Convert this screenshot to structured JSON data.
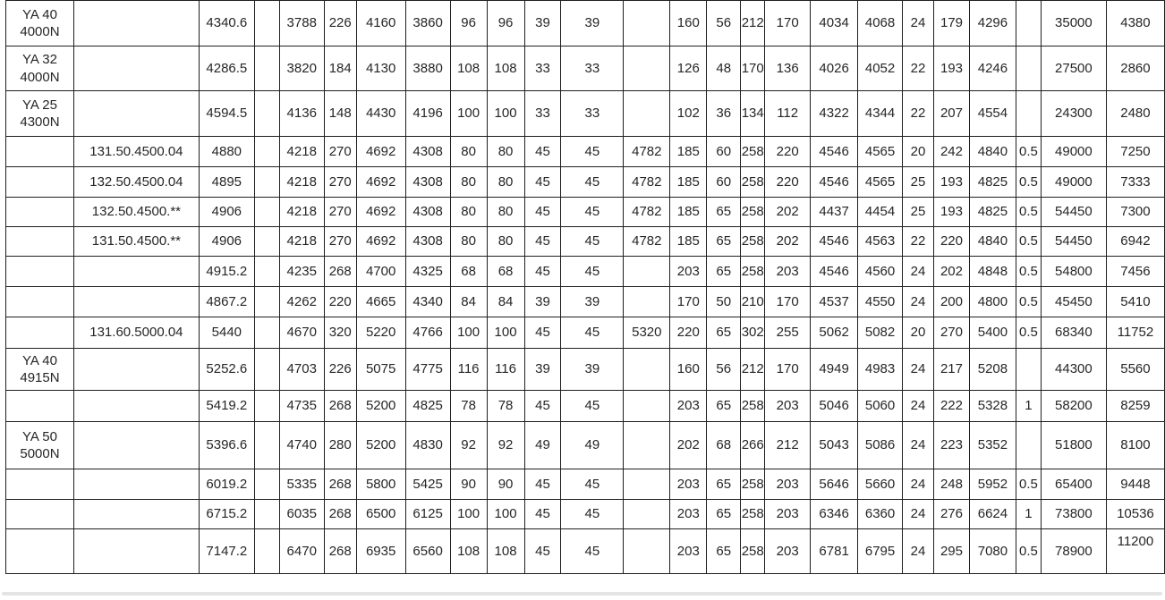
{
  "table": {
    "rows": [
      [
        "YA 40\n4000N",
        "",
        "4340.6",
        "",
        "3788",
        "226",
        "4160",
        "3860",
        "96",
        "96",
        "39",
        "39",
        "",
        "160",
        "56",
        "212",
        "170",
        "4034",
        "4068",
        "24",
        "179",
        "4296",
        "",
        "35000",
        "4380"
      ],
      [
        "YA 32\n4000N",
        "",
        "4286.5",
        "",
        "3820",
        "184",
        "4130",
        "3880",
        "108",
        "108",
        "33",
        "33",
        "",
        "126",
        "48",
        "170",
        "136",
        "4026",
        "4052",
        "22",
        "193",
        "4246",
        "",
        "27500",
        "2860"
      ],
      [
        "YA 25\n4300N",
        "",
        "4594.5",
        "",
        "4136",
        "148",
        "4430",
        "4196",
        "100",
        "100",
        "33",
        "33",
        "",
        "102",
        "36",
        "134",
        "112",
        "4322",
        "4344",
        "22",
        "207",
        "4554",
        "",
        "24300",
        "2480"
      ],
      [
        "",
        "131.50.4500.04",
        "4880",
        "",
        "4218",
        "270",
        "4692",
        "4308",
        "80",
        "80",
        "45",
        "45",
        "4782",
        "185",
        "60",
        "258",
        "220",
        "4546",
        "4565",
        "20",
        "242",
        "4840",
        "0.5",
        "49000",
        "7250"
      ],
      [
        "",
        "132.50.4500.04",
        "4895",
        "",
        "4218",
        "270",
        "4692",
        "4308",
        "80",
        "80",
        "45",
        "45",
        "4782",
        "185",
        "60",
        "258",
        "220",
        "4546",
        "4565",
        "25",
        "193",
        "4825",
        "0.5",
        "49000",
        "7333"
      ],
      [
        "",
        "132.50.4500.**",
        "4906",
        "",
        "4218",
        "270",
        "4692",
        "4308",
        "80",
        "80",
        "45",
        "45",
        "4782",
        "185",
        "65",
        "258",
        "202",
        "4437",
        "4454",
        "25",
        "193",
        "4825",
        "0.5",
        "54450",
        "7300"
      ],
      [
        "",
        "131.50.4500.**",
        "4906",
        "",
        "4218",
        "270",
        "4692",
        "4308",
        "80",
        "80",
        "45",
        "45",
        "4782",
        "185",
        "65",
        "258",
        "202",
        "4546",
        "4563",
        "22",
        "220",
        "4840",
        "0.5",
        "54450",
        "6942"
      ],
      [
        "",
        "",
        "4915.2",
        "",
        "4235",
        "268",
        "4700",
        "4325",
        "68",
        "68",
        "45",
        "45",
        "",
        "203",
        "65",
        "258",
        "203",
        "4546",
        "4560",
        "24",
        "202",
        "4848",
        "0.5",
        "54800",
        "7456"
      ],
      [
        "",
        "",
        "4867.2",
        "",
        "4262",
        "220",
        "4665",
        "4340",
        "84",
        "84",
        "39",
        "39",
        "",
        "170",
        "50",
        "210",
        "170",
        "4537",
        "4550",
        "24",
        "200",
        "4800",
        "0.5",
        "45450",
        "5410"
      ],
      [
        "",
        "131.60.5000.04",
        "5440",
        "",
        "4670",
        "320",
        "5220",
        "4766",
        "100",
        "100",
        "45",
        "45",
        "5320",
        "220",
        "65",
        "302",
        "255",
        "5062",
        "5082",
        "20",
        "270",
        "5400",
        "0.5",
        "68340",
        "11752"
      ],
      [
        "YA 40\n4915N",
        "",
        "5252.6",
        "",
        "4703",
        "226",
        "5075",
        "4775",
        "116",
        "116",
        "39",
        "39",
        "",
        "160",
        "56",
        "212",
        "170",
        "4949",
        "4983",
        "24",
        "217",
        "5208",
        "",
        "44300",
        "5560"
      ],
      [
        "",
        "",
        "5419.2",
        "",
        "4735",
        "268",
        "5200",
        "4825",
        "78",
        "78",
        "45",
        "45",
        "",
        "203",
        "65",
        "258",
        "203",
        "5046",
        "5060",
        "24",
        "222",
        "5328",
        "1",
        "58200",
        "8259"
      ],
      [
        "YA 50\n5000N",
        "",
        "5396.6",
        "",
        "4740",
        "280",
        "5200",
        "4830",
        "92",
        "92",
        "49",
        "49",
        "",
        "202",
        "68",
        "266",
        "212",
        "5043",
        "5086",
        "24",
        "223",
        "5352",
        "",
        "51800",
        "8100"
      ],
      [
        "",
        "",
        "6019.2",
        "",
        "5335",
        "268",
        "5800",
        "5425",
        "90",
        "90",
        "45",
        "45",
        "",
        "203",
        "65",
        "258",
        "203",
        "5646",
        "5660",
        "24",
        "248",
        "5952",
        "0.5",
        "65400",
        "9448"
      ],
      [
        "",
        "",
        "6715.2",
        "",
        "6035",
        "268",
        "6500",
        "6125",
        "100",
        "100",
        "45",
        "45",
        "",
        "203",
        "65",
        "258",
        "203",
        "6346",
        "6360",
        "24",
        "276",
        "6624",
        "1",
        "73800",
        "10536"
      ],
      [
        "",
        "",
        "7147.2",
        "",
        "6470",
        "268",
        "6935",
        "6560",
        "108",
        "108",
        "45",
        "45",
        "",
        "203",
        "65",
        "258",
        "203",
        "6781",
        "6795",
        "24",
        "295",
        "7080",
        "0.5",
        "78900",
        "11200"
      ]
    ]
  },
  "colors": {
    "border": "#1f1f1f",
    "text": "#262626",
    "background": "#ffffff",
    "bottom_edge": "#e4e4e4"
  }
}
